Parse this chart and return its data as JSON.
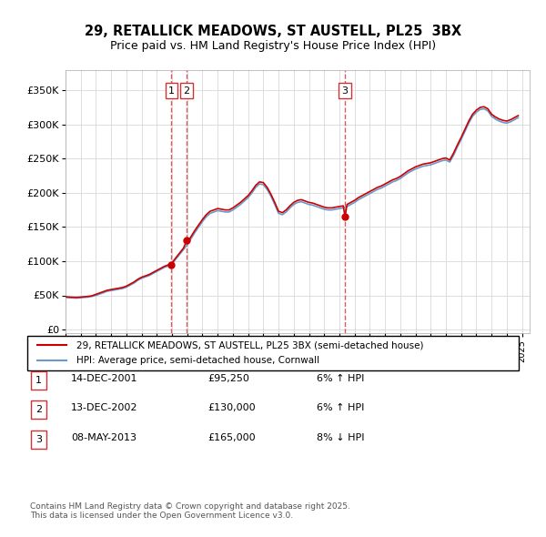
{
  "title1": "29, RETALLICK MEADOWS, ST AUSTELL, PL25  3BX",
  "title2": "Price paid vs. HM Land Registry's House Price Index (HPI)",
  "ylabel": "",
  "yticks": [
    0,
    50000,
    100000,
    150000,
    200000,
    250000,
    300000,
    350000
  ],
  "ytick_labels": [
    "£0",
    "£50K",
    "£100K",
    "£150K",
    "£200K",
    "£250K",
    "£300K",
    "£350K"
  ],
  "ylim": [
    -5000,
    380000
  ],
  "sale_color": "#cc0000",
  "hpi_color": "#6699cc",
  "transaction_color": "#cc0000",
  "vline_color": "#cc3333",
  "sale_label": "29, RETALLICK MEADOWS, ST AUSTELL, PL25 3BX (semi-detached house)",
  "hpi_label": "HPI: Average price, semi-detached house, Cornwall",
  "transactions": [
    {
      "id": 1,
      "date_num": 2001.96,
      "price": 95250,
      "label": "1"
    },
    {
      "id": 2,
      "date_num": 2002.96,
      "price": 130000,
      "label": "2"
    },
    {
      "id": 3,
      "date_num": 2013.37,
      "price": 165000,
      "label": "3"
    }
  ],
  "table_rows": [
    {
      "num": "1",
      "date": "14-DEC-2001",
      "price": "£95,250",
      "pct": "6% ↑ HPI"
    },
    {
      "num": "2",
      "date": "13-DEC-2002",
      "price": "£130,000",
      "pct": "6% ↑ HPI"
    },
    {
      "num": "3",
      "date": "08-MAY-2013",
      "price": "£165,000",
      "pct": "8% ↓ HPI"
    }
  ],
  "footer": "Contains HM Land Registry data © Crown copyright and database right 2025.\nThis data is licensed under the Open Government Licence v3.0.",
  "hpi_data": {
    "years": [
      1995.0,
      1995.25,
      1995.5,
      1995.75,
      1996.0,
      1996.25,
      1996.5,
      1996.75,
      1997.0,
      1997.25,
      1997.5,
      1997.75,
      1998.0,
      1998.25,
      1998.5,
      1998.75,
      1999.0,
      1999.25,
      1999.5,
      1999.75,
      2000.0,
      2000.25,
      2000.5,
      2000.75,
      2001.0,
      2001.25,
      2001.5,
      2001.75,
      2002.0,
      2002.25,
      2002.5,
      2002.75,
      2003.0,
      2003.25,
      2003.5,
      2003.75,
      2004.0,
      2004.25,
      2004.5,
      2004.75,
      2005.0,
      2005.25,
      2005.5,
      2005.75,
      2006.0,
      2006.25,
      2006.5,
      2006.75,
      2007.0,
      2007.25,
      2007.5,
      2007.75,
      2008.0,
      2008.25,
      2008.5,
      2008.75,
      2009.0,
      2009.25,
      2009.5,
      2009.75,
      2010.0,
      2010.25,
      2010.5,
      2010.75,
      2011.0,
      2011.25,
      2011.5,
      2011.75,
      2012.0,
      2012.25,
      2012.5,
      2012.75,
      2013.0,
      2013.25,
      2013.5,
      2013.75,
      2014.0,
      2014.25,
      2014.5,
      2014.75,
      2015.0,
      2015.25,
      2015.5,
      2015.75,
      2016.0,
      2016.25,
      2016.5,
      2016.75,
      2017.0,
      2017.25,
      2017.5,
      2017.75,
      2018.0,
      2018.25,
      2018.5,
      2018.75,
      2019.0,
      2019.25,
      2019.5,
      2019.75,
      2020.0,
      2020.25,
      2020.5,
      2020.75,
      2021.0,
      2021.25,
      2021.5,
      2021.75,
      2022.0,
      2022.25,
      2022.5,
      2022.75,
      2023.0,
      2023.25,
      2023.5,
      2023.75,
      2024.0,
      2024.25,
      2024.5,
      2024.75
    ],
    "values": [
      47000,
      46500,
      46200,
      46000,
      46500,
      47000,
      47500,
      48500,
      50000,
      52000,
      54000,
      56000,
      57000,
      58000,
      59000,
      60000,
      62000,
      65000,
      68000,
      72000,
      75000,
      77000,
      79000,
      82000,
      85000,
      88000,
      91000,
      93000,
      96000,
      103000,
      110000,
      117000,
      124000,
      133000,
      142000,
      150000,
      158000,
      165000,
      170000,
      172000,
      174000,
      173000,
      172000,
      172000,
      175000,
      179000,
      183000,
      188000,
      193000,
      200000,
      208000,
      213000,
      212000,
      205000,
      195000,
      183000,
      170000,
      168000,
      172000,
      178000,
      183000,
      186000,
      187000,
      185000,
      183000,
      182000,
      180000,
      178000,
      176000,
      175000,
      175000,
      176000,
      177000,
      178000,
      180000,
      183000,
      186000,
      190000,
      193000,
      196000,
      199000,
      202000,
      205000,
      207000,
      210000,
      213000,
      216000,
      218000,
      221000,
      225000,
      229000,
      232000,
      235000,
      237000,
      239000,
      240000,
      241000,
      243000,
      245000,
      247000,
      248000,
      245000,
      255000,
      267000,
      278000,
      290000,
      302000,
      312000,
      318000,
      322000,
      323000,
      320000,
      312000,
      308000,
      305000,
      303000,
      302000,
      304000,
      307000,
      310000
    ]
  },
  "sale_hpi_data": {
    "years": [
      1995.0,
      1995.25,
      1995.5,
      1995.75,
      1996.0,
      1996.25,
      1996.5,
      1996.75,
      1997.0,
      1997.25,
      1997.5,
      1997.75,
      1998.0,
      1998.25,
      1998.5,
      1998.75,
      1999.0,
      1999.25,
      1999.5,
      1999.75,
      2000.0,
      2000.25,
      2000.5,
      2000.75,
      2001.0,
      2001.25,
      2001.5,
      2001.75,
      2001.96,
      2002.0,
      2002.25,
      2002.5,
      2002.75,
      2002.96,
      2003.0,
      2003.25,
      2003.5,
      2003.75,
      2004.0,
      2004.25,
      2004.5,
      2004.75,
      2005.0,
      2005.25,
      2005.5,
      2005.75,
      2006.0,
      2006.25,
      2006.5,
      2006.75,
      2007.0,
      2007.25,
      2007.5,
      2007.75,
      2008.0,
      2008.25,
      2008.5,
      2008.75,
      2009.0,
      2009.25,
      2009.5,
      2009.75,
      2010.0,
      2010.25,
      2010.5,
      2010.75,
      2011.0,
      2011.25,
      2011.5,
      2011.75,
      2012.0,
      2012.25,
      2012.5,
      2012.75,
      2013.0,
      2013.25,
      2013.37,
      2013.5,
      2013.75,
      2014.0,
      2014.25,
      2014.5,
      2014.75,
      2015.0,
      2015.25,
      2015.5,
      2015.75,
      2016.0,
      2016.25,
      2016.5,
      2016.75,
      2017.0,
      2017.25,
      2017.5,
      2017.75,
      2018.0,
      2018.25,
      2018.5,
      2018.75,
      2019.0,
      2019.25,
      2019.5,
      2019.75,
      2020.0,
      2020.25,
      2020.5,
      2020.75,
      2021.0,
      2021.25,
      2021.5,
      2021.75,
      2022.0,
      2022.25,
      2022.5,
      2022.75,
      2023.0,
      2023.25,
      2023.5,
      2023.75,
      2024.0,
      2024.25,
      2024.5,
      2024.75
    ],
    "values": [
      48000,
      47500,
      47200,
      47000,
      47500,
      48000,
      48500,
      49500,
      51500,
      53500,
      55500,
      57500,
      58500,
      59500,
      60500,
      61500,
      63500,
      66500,
      69500,
      73500,
      76500,
      78500,
      80500,
      83500,
      86500,
      89500,
      92500,
      94500,
      95250,
      97500,
      105000,
      112000,
      119000,
      130000,
      127000,
      136000,
      145000,
      153000,
      161000,
      168000,
      173000,
      175000,
      177000,
      176000,
      175000,
      175000,
      178000,
      182000,
      186000,
      191000,
      196000,
      203000,
      211000,
      216000,
      215000,
      208000,
      198000,
      186000,
      173000,
      171000,
      175000,
      181000,
      186000,
      189000,
      190000,
      188000,
      186000,
      185000,
      183000,
      181000,
      179000,
      178000,
      178000,
      179000,
      180000,
      181000,
      165000,
      183000,
      186000,
      189000,
      193000,
      196000,
      199000,
      202000,
      205000,
      208000,
      210000,
      213000,
      216000,
      219000,
      221000,
      224000,
      228000,
      232000,
      235000,
      238000,
      240000,
      242000,
      243000,
      244000,
      246000,
      248000,
      250000,
      251000,
      248000,
      258000,
      270000,
      281000,
      293000,
      305000,
      315000,
      321000,
      325000,
      326000,
      323000,
      315000,
      311000,
      308000,
      306000,
      305000,
      307000,
      310000,
      313000
    ]
  }
}
